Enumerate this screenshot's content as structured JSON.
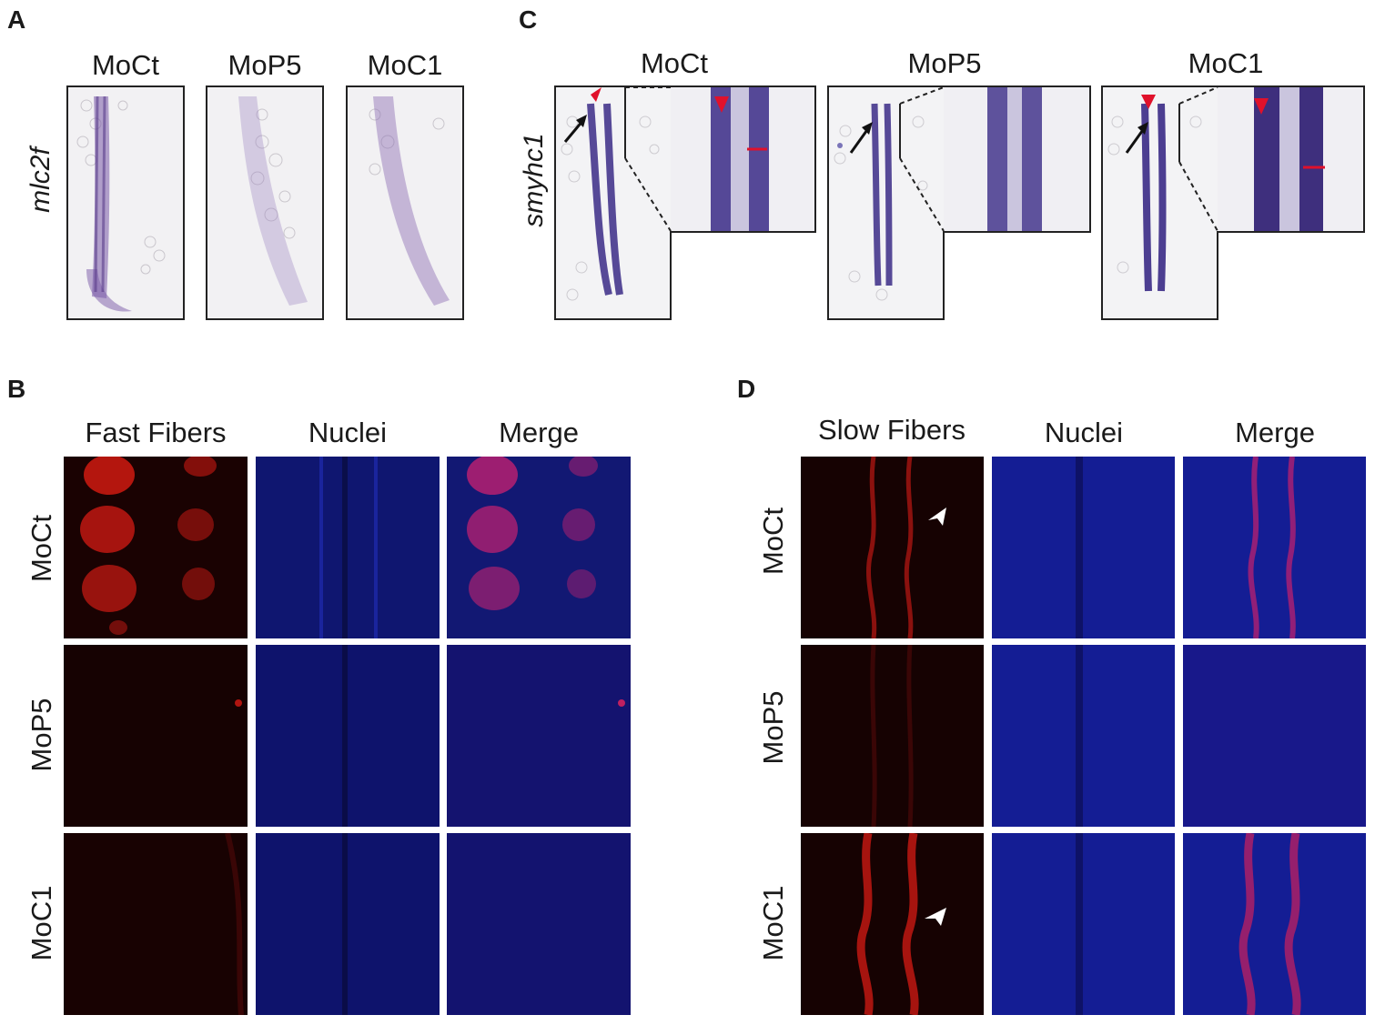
{
  "figure": {
    "panel_letters": {
      "A": "A",
      "B": "B",
      "C": "C",
      "D": "D"
    },
    "conditions": [
      "MoCt",
      "MoP5",
      "MoC1"
    ],
    "panel_A": {
      "gene": "mlc2f",
      "columns": [
        "MoCt",
        "MoP5",
        "MoC1"
      ],
      "stain_color": "#7a5aa8"
    },
    "panel_C": {
      "gene": "smyhc1",
      "columns": [
        "MoCt",
        "MoP5",
        "MoC1"
      ],
      "stain_color": "#3a2a86",
      "arrowhead_color": "#e0112b"
    },
    "panel_B": {
      "columns": [
        "Fast Fibers",
        "Nuclei",
        "Merge"
      ],
      "rows": [
        "MoCt",
        "MoP5",
        "MoC1"
      ],
      "channel_colors": {
        "fibers": "#ff2a1a",
        "nuclei": "#1a2cff"
      }
    },
    "panel_D": {
      "columns": [
        "Slow Fibers",
        "Nuclei",
        "Merge"
      ],
      "rows": [
        "MoCt",
        "MoP5",
        "MoC1"
      ],
      "channel_colors": {
        "fibers": "#ff2a1a",
        "nuclei": "#1a2cff"
      }
    }
  }
}
